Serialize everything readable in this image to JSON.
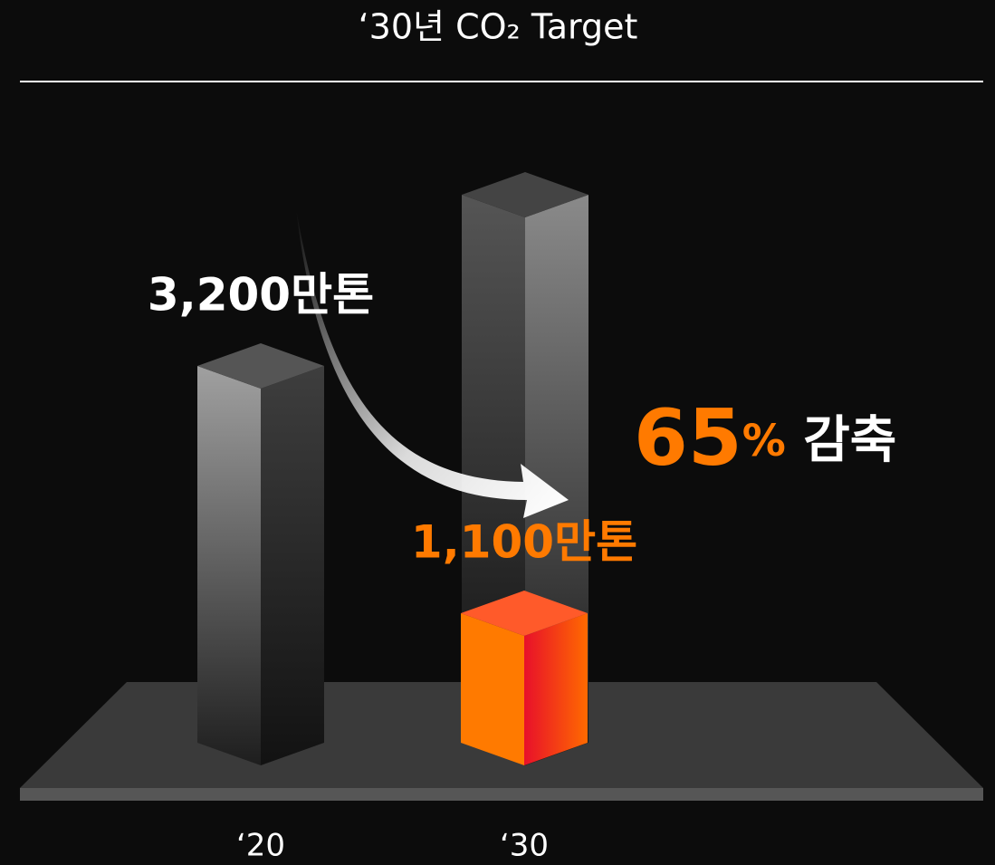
{
  "chart_data": {
    "type": "bar",
    "title": "‘30년 CO₂ Target",
    "categories": [
      "‘20",
      "‘30"
    ],
    "values": [
      3200,
      1100
    ],
    "value_labels": [
      "3,200만톤",
      "1,100만톤"
    ],
    "colors": [
      "#9a9a9a",
      "#ff7a00"
    ],
    "label_colors": [
      "#ffffff",
      "#ff7a00"
    ],
    "annotation": "65% 감축"
  }
}
